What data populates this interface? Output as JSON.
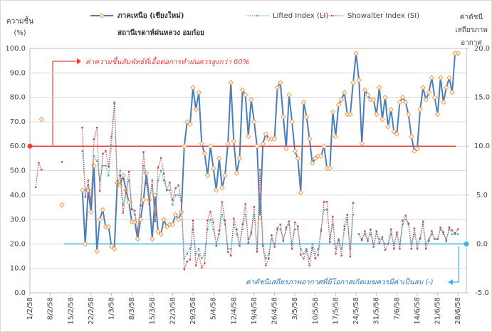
{
  "chart_data": {
    "type": "line",
    "subtitle": "สถานีเรดาห์ฝนหลวง อมก๋อย",
    "ylabel": [
      "ความชื้น",
      "(%)"
    ],
    "y2label": [
      "ค่าดัชนี",
      "เสถียรภาพ",
      "อากาศ"
    ],
    "categories": [
      "1/2/58",
      null,
      null,
      null,
      null,
      null,
      null,
      "8/2/58",
      null,
      null,
      null,
      null,
      null,
      null,
      "15/2/58",
      null,
      null,
      null,
      null,
      null,
      null,
      "22/2/58",
      null,
      null,
      null,
      null,
      null,
      null,
      "1/3/58",
      null,
      null,
      null,
      null,
      null,
      null,
      "8/3/58",
      null,
      null,
      null,
      null,
      null,
      null,
      "15/3/58",
      null,
      null,
      null,
      null,
      null,
      null,
      "22/3/58",
      null,
      null,
      null,
      null,
      null,
      null,
      "29/3/58",
      null,
      null,
      null,
      null,
      null,
      null,
      "5/4/58",
      null,
      null,
      null,
      null,
      null,
      null,
      "12/4/58",
      null,
      null,
      null,
      null,
      null,
      null,
      "19/4/58",
      null,
      null,
      null,
      null,
      null,
      null,
      "26/4/58",
      null,
      null,
      null,
      null,
      null,
      null,
      "3/5/58",
      null,
      null,
      null,
      null,
      null,
      null,
      "10/5/58",
      null,
      null,
      null,
      null,
      null,
      null,
      "17/5/58",
      null,
      null,
      null,
      null,
      null,
      null,
      "24/5/58",
      null,
      null,
      null,
      null,
      null,
      null,
      "31/5/58",
      null,
      null,
      null,
      null,
      null,
      null,
      "7/6/58",
      null,
      null,
      null,
      null,
      null,
      null,
      "14/6/58",
      null,
      null,
      null,
      null,
      null,
      null,
      "21/6/58",
      null,
      null,
      null,
      null,
      null,
      null,
      "28/6/58",
      null,
      null
    ],
    "series": [
      {
        "name": "ภาคเหนือ (เชียงใหม่)",
        "color": "#4a7ebb",
        "marker_color": "#f79646",
        "line_style": "solid",
        "values": [
          null,
          null,
          null,
          null,
          71,
          null,
          null,
          null,
          null,
          null,
          null,
          36,
          null,
          null,
          null,
          null,
          null,
          null,
          42,
          20,
          42,
          33,
          52,
          17,
          30,
          34,
          27,
          27,
          19,
          18,
          45,
          44,
          48,
          42,
          37,
          29,
          29,
          22,
          30,
          38,
          49,
          38,
          22,
          40,
          25,
          24,
          30,
          27,
          28,
          28,
          32,
          30,
          33,
          60,
          70,
          69,
          84,
          75,
          82,
          61,
          57,
          48,
          60,
          51,
          42,
          55,
          43,
          48,
          61,
          86,
          62,
          49,
          55,
          83,
          81,
          64,
          79,
          70,
          60,
          31,
          61,
          65,
          63,
          63,
          63,
          84,
          86,
          72,
          59,
          81,
          70,
          58,
          55,
          41,
          78,
          72,
          63,
          53,
          55,
          56,
          56,
          60,
          51,
          51,
          74,
          64,
          77,
          79,
          82,
          73,
          73,
          86,
          98,
          87,
          61,
          83,
          81,
          79,
          79,
          73,
          84,
          71,
          80,
          68,
          75,
          66,
          65,
          78,
          80,
          78,
          73,
          64,
          58,
          59,
          75,
          84,
          79,
          82,
          88,
          80,
          73,
          88,
          78,
          84,
          88,
          82,
          98,
          98,
          null,
          null
        ]
      },
      {
        "name": "Lifted Index (LI)",
        "color": "#4bacc6",
        "marker_color": "#4bacc6",
        "line_style": "dotted",
        "axis": "y2",
        "values": [
          null,
          null,
          null,
          null,
          null,
          null,
          null,
          null,
          null,
          null,
          null,
          null,
          null,
          null,
          null,
          null,
          null,
          null,
          9.5,
          5.5,
          6.0,
          4.5,
          9.0,
          8.5,
          6.5,
          8.0,
          8.0,
          7.0,
          10.0,
          14.5,
          6.5,
          7.5,
          4.0,
          5.5,
          6.5,
          3.5,
          3.0,
          1.5,
          4.0,
          8.0,
          6.5,
          4.5,
          6.0,
          2.5,
          6.5,
          7.5,
          6.5,
          5.5,
          5.5,
          4.0,
          5.0,
          5.0,
          4.5,
          -1.5,
          -1.0,
          -0.5,
          1.5,
          -1.0,
          -0.5,
          -1.5,
          -1.0,
          1.5,
          2.5,
          1.5,
          0.0,
          1.0,
          3.0,
          2.0,
          -0.5,
          -0.5,
          2.0,
          1.0,
          0.0,
          1.5,
          3.0,
          0.5,
          1.0,
          3.0,
          -0.5,
          5.0,
          0.0,
          -1.5,
          -1.0,
          0.5,
          0.0,
          1.5,
          1.5,
          0.5,
          1.5,
          2.0,
          0.0,
          1.5,
          1.5,
          -0.5,
          -1.0,
          -0.5,
          -1.5,
          0.0,
          -1.0,
          -0.5,
          1.5,
          3.5,
          3.5,
          0.5,
          2.0,
          -0.5,
          0.5,
          -0.5,
          1.5,
          2.5,
          -0.5,
          3.0,
          null,
          1.0,
          0.5,
          1.0,
          0.5,
          1.0,
          0.0,
          1.0,
          0.5,
          0.5,
          0.0,
          0.0,
          1.0,
          0.0,
          1.0,
          0.0,
          2.0,
          2.5,
          2.0,
          0.0,
          1.0,
          0.0,
          0.5,
          2.0,
          0.0,
          0.5,
          1.0,
          0.5,
          0.5,
          1.5,
          1.0,
          0.5,
          1.5,
          1.0,
          1.0,
          1.0,
          null,
          null
        ]
      },
      {
        "name": "Showalter Index (SI)",
        "color": "#c0504d",
        "marker_color": "#c0504d",
        "line_style": "dotted",
        "axis": "y2",
        "values": [
          null,
          null,
          5.8,
          8.3,
          7.6,
          null,
          null,
          null,
          null,
          null,
          null,
          8.4,
          null,
          null,
          null,
          null,
          null,
          null,
          11.9,
          4.8,
          6.5,
          4.1,
          10.7,
          11.9,
          5.4,
          9.2,
          9.5,
          7.9,
          11,
          14.4,
          6.0,
          7.0,
          3.2,
          5.2,
          7.4,
          3.6,
          3.4,
          1.2,
          3.9,
          9.4,
          6.2,
          4.1,
          6.5,
          2.3,
          7.8,
          8.8,
          7.2,
          5.5,
          6.3,
          4.5,
          5.7,
          6.0,
          4.4,
          -2.6,
          -1.8,
          -1.6,
          2.4,
          -2.2,
          -1.1,
          -2.4,
          -2.0,
          2.4,
          3.3,
          2.2,
          -0.2,
          1.4,
          4.3,
          2.4,
          -0.8,
          -1.2,
          2.6,
          1.5,
          -0.2,
          2.0,
          4.1,
          0.1,
          1.2,
          3.8,
          -0.8,
          7.6,
          -0.2,
          -2.2,
          -1.5,
          0.9,
          -0.3,
          1.6,
          2.0,
          0.3,
          1.7,
          2.3,
          -0.5,
          2.2,
          1.8,
          -1.1,
          -1.5,
          -0.7,
          -2.2,
          -0.4,
          -1.5,
          -1.1,
          1.3,
          4.3,
          4.3,
          0.2,
          2.8,
          -1.0,
          0.4,
          -1.2,
          1.8,
          3.0,
          -1.3,
          4.2,
          null,
          1.0,
          0.4,
          1.3,
          0.3,
          1.5,
          -0.3,
          1.3,
          0.1,
          0.7,
          -0.6,
          0.0,
          1.5,
          -0.5,
          1.2,
          -0.5,
          2.4,
          2.9,
          2.1,
          -0.5,
          1.6,
          -0.5,
          0.6,
          2.3,
          -0.5,
          0.3,
          1.3,
          0.5,
          0.5,
          1.7,
          1.2,
          0.3,
          1.7,
          1.4,
          1.1,
          1.5,
          null,
          null
        ]
      }
    ],
    "ylim": [
      0,
      100
    ],
    "yticks": [
      {
        "value": 0,
        "label": "0.0"
      },
      {
        "value": 10,
        "label": "10.0"
      },
      {
        "value": 20,
        "label": "20.0"
      },
      {
        "value": 30,
        "label": "30.0"
      },
      {
        "value": 40,
        "label": "40.0"
      },
      {
        "value": 50,
        "label": "50.0"
      },
      {
        "value": 60,
        "label": "60.0"
      },
      {
        "value": 70,
        "label": "70.0"
      },
      {
        "value": 80,
        "label": "80.0"
      },
      {
        "value": 90,
        "label": "90.0"
      },
      {
        "value": 100,
        "label": "100.0"
      }
    ],
    "y2lim": [
      -5,
      20
    ],
    "y2ticks": [
      {
        "value": -5,
        "label": "-5.0"
      },
      {
        "value": 0,
        "label": "0.0"
      },
      {
        "value": 5,
        "label": "5.0"
      },
      {
        "value": 10,
        "label": "10.0"
      },
      {
        "value": 15,
        "label": "15.0"
      },
      {
        "value": 20,
        "label": "20.0"
      }
    ],
    "grid": true,
    "legend": "top",
    "reference_lines": [
      {
        "value": 60,
        "color": "#e8413c",
        "text": "ค่าความชื้นสัมพัทธ์ที่เอื้อต่อการทำฝนควรสูงกว่า 60%"
      },
      {
        "value": 0,
        "axis": "y2",
        "color": "#37b6e6",
        "text": "ค่าดัชนีเสถียรภาพอากาศที่มีโอกาสเกิดเมฆควรมีค่าเป็นลบ (-)"
      }
    ]
  }
}
